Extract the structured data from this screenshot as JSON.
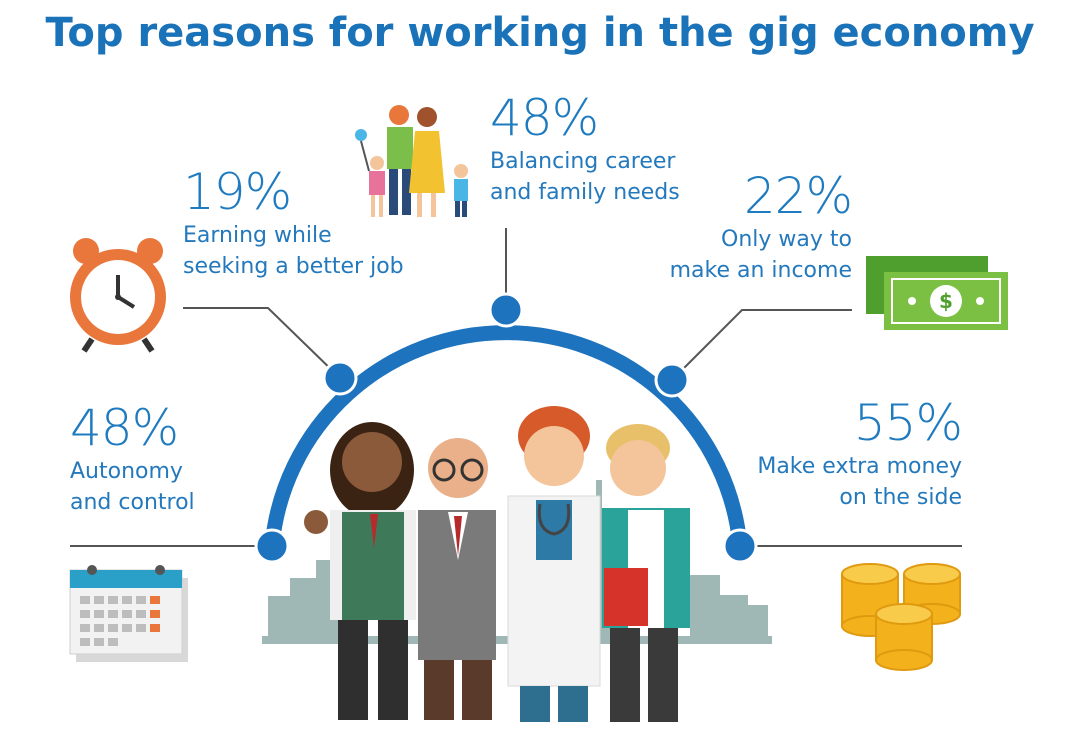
{
  "title": "Top reasons for working in the gig economy",
  "colors": {
    "accent": "#1a73b8",
    "text": "#2479bd",
    "line": "#555555"
  },
  "reasons": [
    {
      "pct": "48%",
      "line1": "Autonomy",
      "line2": "and control",
      "icon": "calendar-icon"
    },
    {
      "pct": "19%",
      "line1": "Earning while",
      "line2": "seeking a better job",
      "icon": "alarm-clock-icon"
    },
    {
      "pct": "48%",
      "line1": "Balancing career",
      "line2": "and family needs",
      "icon": "family-icon"
    },
    {
      "pct": "22%",
      "line1": "Only way to",
      "line2": "make an income",
      "icon": "cash-icon"
    },
    {
      "pct": "55%",
      "line1": "Make extra money",
      "line2": "on the side",
      "icon": "coins-icon"
    }
  ]
}
